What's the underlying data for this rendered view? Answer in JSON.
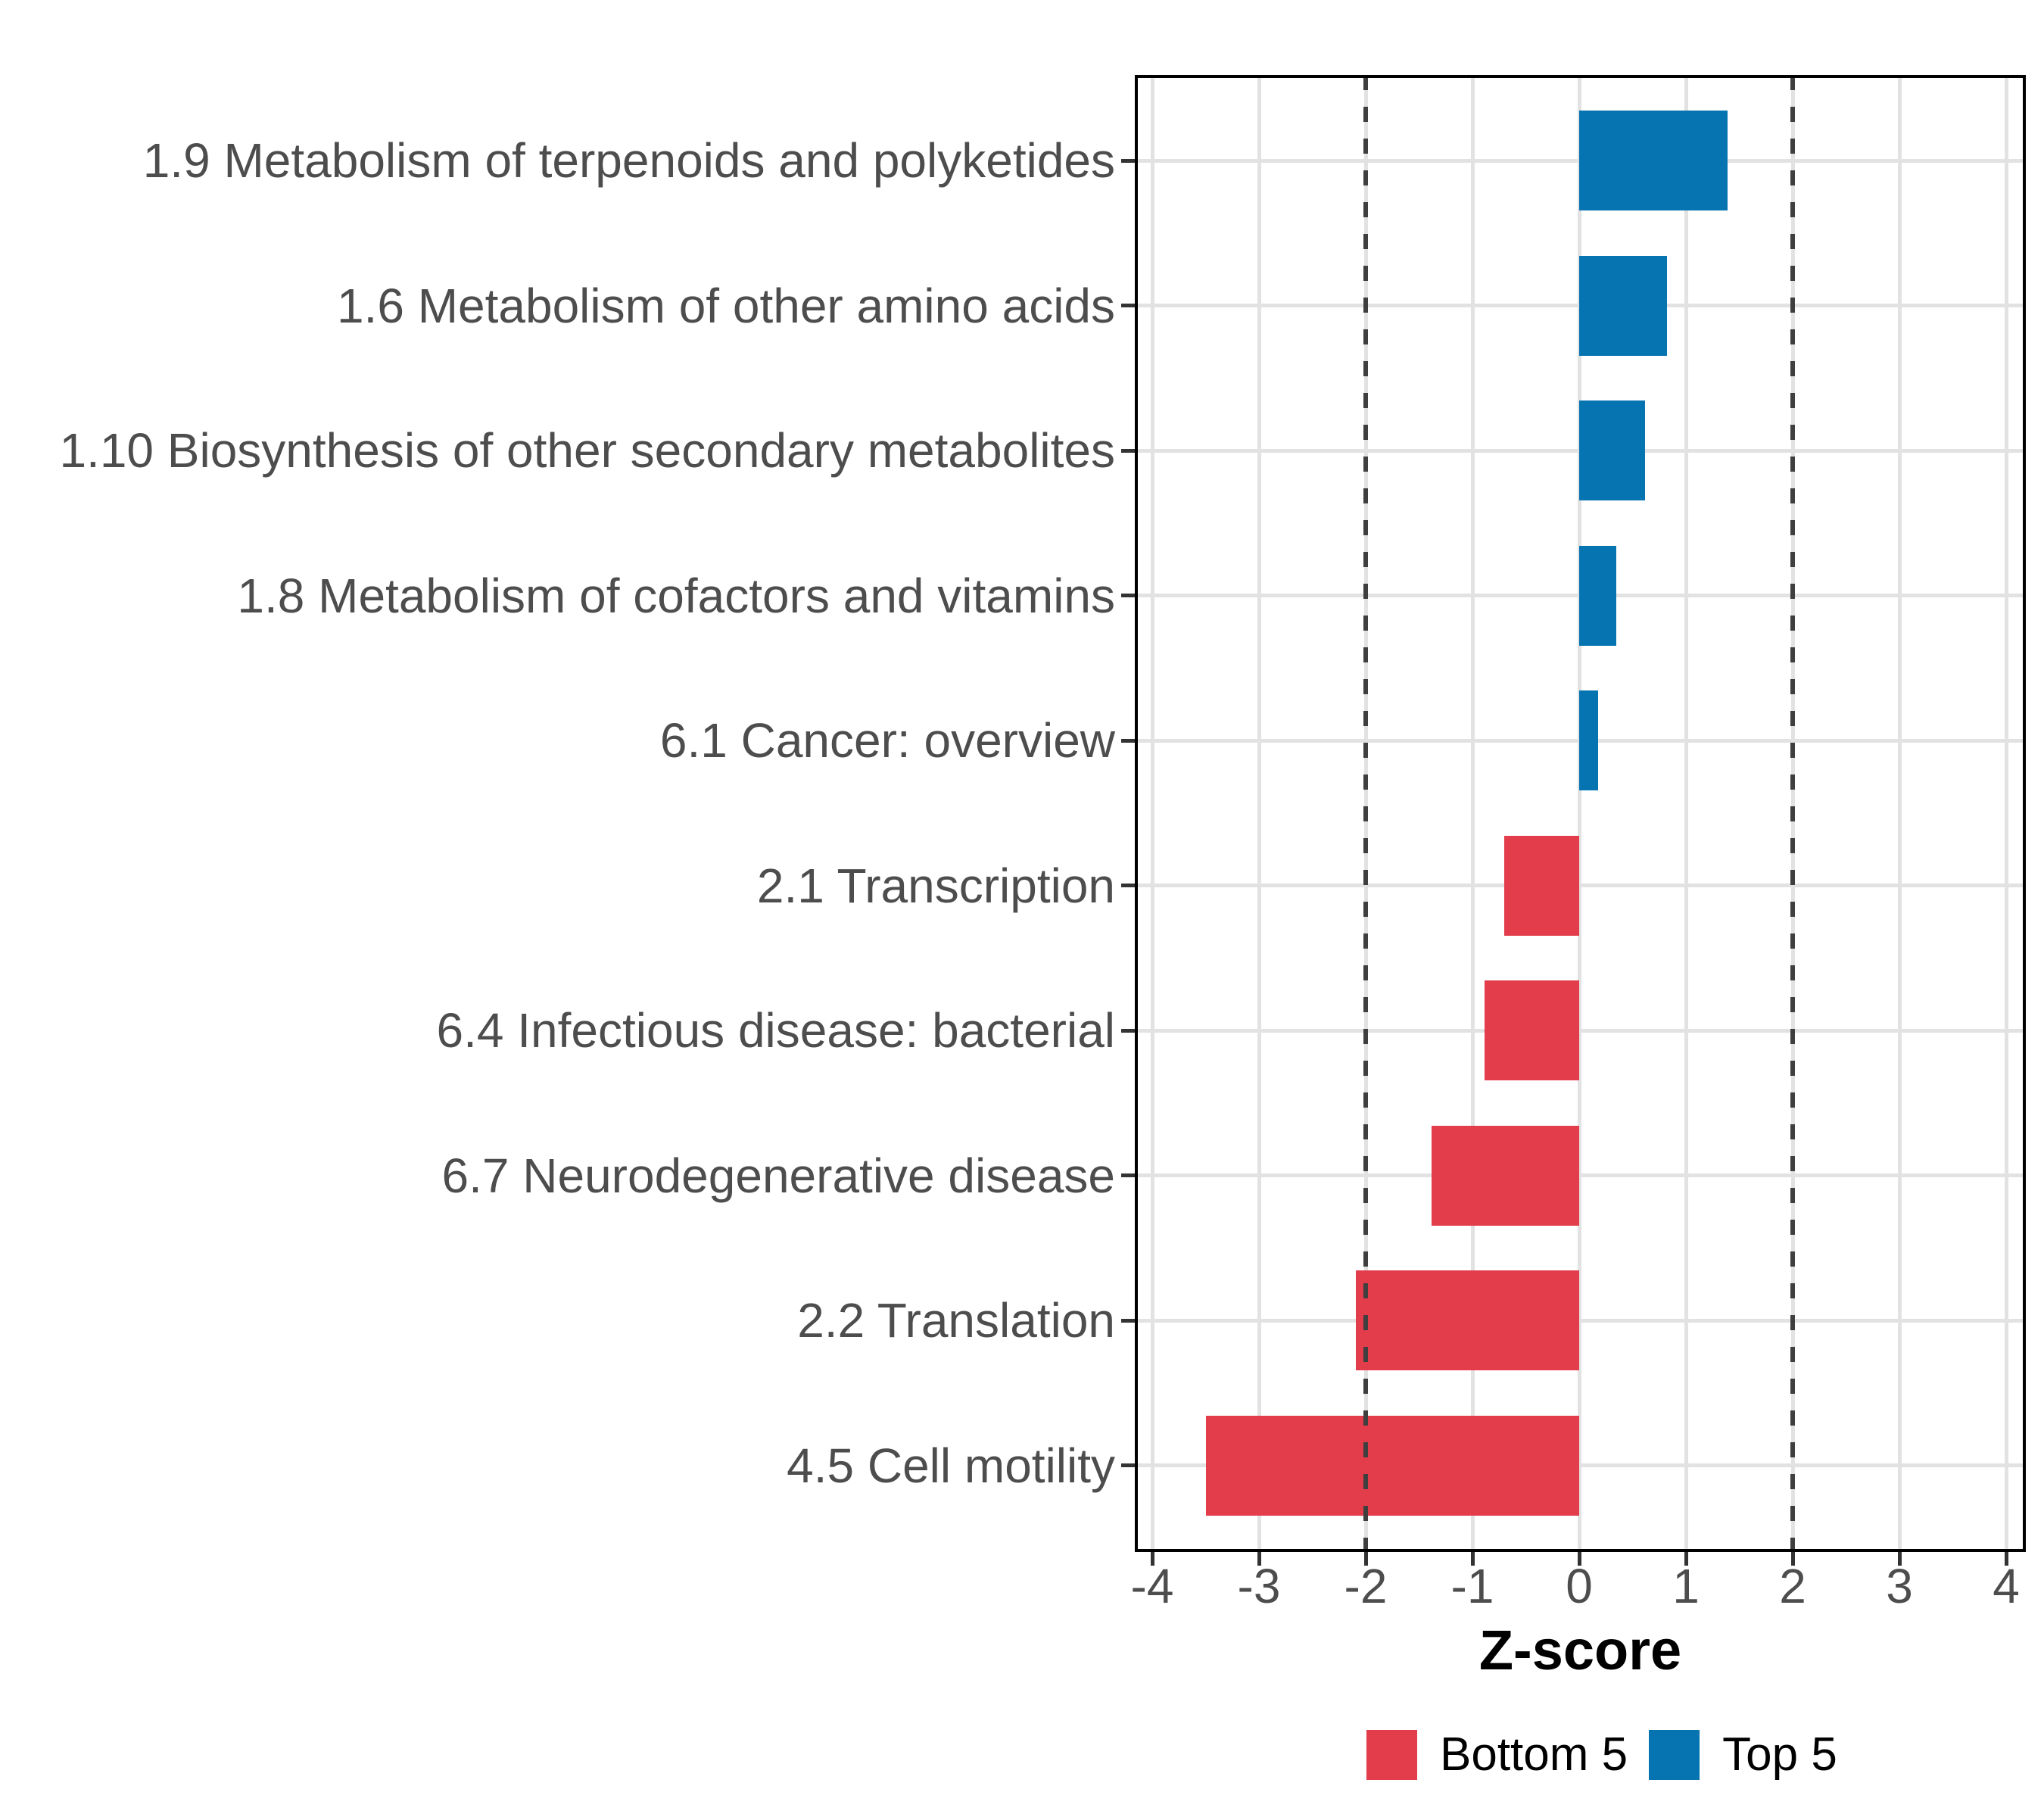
{
  "chart_data": {
    "type": "bar",
    "orientation": "horizontal",
    "categories": [
      "1.9 Metabolism of terpenoids and polyketides",
      "1.6 Metabolism of other amino acids",
      "1.10 Biosynthesis of other secondary metabolites",
      "1.8 Metabolism of cofactors and vitamins",
      "6.1 Cancer: overview",
      "2.1 Transcription",
      "6.4 Infectious disease: bacterial",
      "6.7 Neurodegenerative disease",
      "2.2 Translation",
      "4.5 Cell motility"
    ],
    "values": [
      1.39,
      0.82,
      0.62,
      0.35,
      0.18,
      -0.7,
      -0.89,
      -1.38,
      -2.09,
      -3.5
    ],
    "groups": [
      "Top 5",
      "Top 5",
      "Top 5",
      "Top 5",
      "Top 5",
      "Bottom 5",
      "Bottom 5",
      "Bottom 5",
      "Bottom 5",
      "Bottom 5"
    ],
    "xlabel": "Z-score",
    "x_ticks": [
      -4,
      -3,
      -2,
      -1,
      0,
      1,
      2,
      3,
      4
    ],
    "xlim": [
      -4.16,
      4.18
    ],
    "threshold_lines": [
      -2,
      2
    ],
    "grid": true,
    "legend_position": "bottom",
    "legend": [
      {
        "label": "Bottom 5",
        "color": "#E33C4B"
      },
      {
        "label": "Top 5",
        "color": "#0774B2"
      }
    ],
    "colors": {
      "Bottom 5": "#E33C4B",
      "Top 5": "#0774B2",
      "grid": "#E2E2E2",
      "threshold_line": "#3F3F3F",
      "axis_text": "#4D4D4D",
      "panel_border": "#000000"
    }
  }
}
